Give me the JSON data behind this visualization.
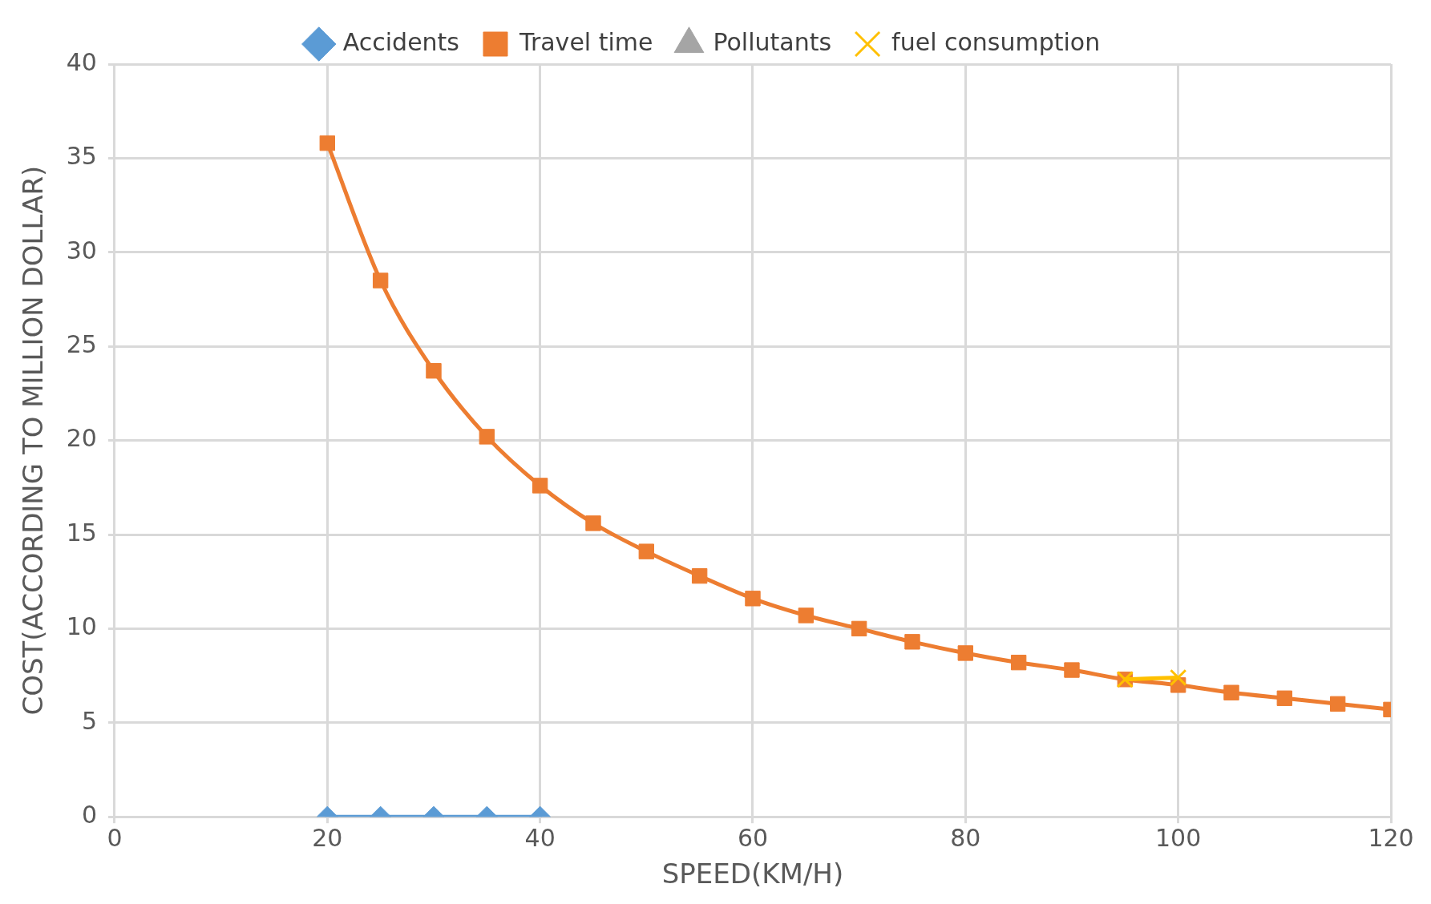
{
  "chart_data": {
    "type": "line",
    "xlabel": "SPEED(KM/H)",
    "ylabel": "COST(ACCORDING TO MILLION DOLLAR)",
    "x": [
      20,
      25,
      30,
      35,
      40,
      45,
      50,
      55,
      60,
      65,
      70,
      75,
      80,
      85,
      90,
      95,
      100,
      105,
      110,
      115,
      120
    ],
    "series": [
      {
        "name": "Accidents",
        "color": "#5b9bd5",
        "marker": "diamond",
        "values": [
          0,
          0,
          0,
          0,
          0,
          null,
          null,
          null,
          null,
          null,
          null,
          null,
          null,
          null,
          null,
          null,
          null,
          null,
          null,
          null,
          null
        ]
      },
      {
        "name": "Travel time",
        "color": "#ed7d31",
        "marker": "square",
        "values": [
          35.8,
          28.5,
          23.7,
          20.2,
          17.6,
          15.6,
          14.1,
          12.8,
          11.6,
          10.7,
          10.0,
          9.3,
          8.7,
          8.2,
          7.8,
          7.3,
          7.0,
          6.6,
          6.3,
          6.0,
          5.7
        ]
      },
      {
        "name": "Pollutants",
        "color": "#a5a5a5",
        "marker": "triangle",
        "values": [
          null,
          null,
          null,
          null,
          null,
          null,
          null,
          null,
          null,
          null,
          null,
          null,
          null,
          null,
          null,
          null,
          null,
          null,
          null,
          null,
          null
        ]
      },
      {
        "name": "fuel consumption",
        "color": "#ffc000",
        "marker": "cross",
        "values": [
          null,
          null,
          null,
          null,
          null,
          null,
          null,
          null,
          null,
          null,
          null,
          null,
          null,
          null,
          null,
          7.3,
          7.4,
          null,
          null,
          null,
          null
        ]
      }
    ],
    "xlim": [
      0,
      120
    ],
    "xticks": [
      0,
      20,
      40,
      60,
      80,
      100,
      120
    ],
    "ylim": [
      0,
      40
    ],
    "yticks": [
      0,
      5,
      10,
      15,
      20,
      25,
      30,
      35,
      40
    ],
    "grid": true,
    "legend": "top",
    "line_style": "solid"
  }
}
